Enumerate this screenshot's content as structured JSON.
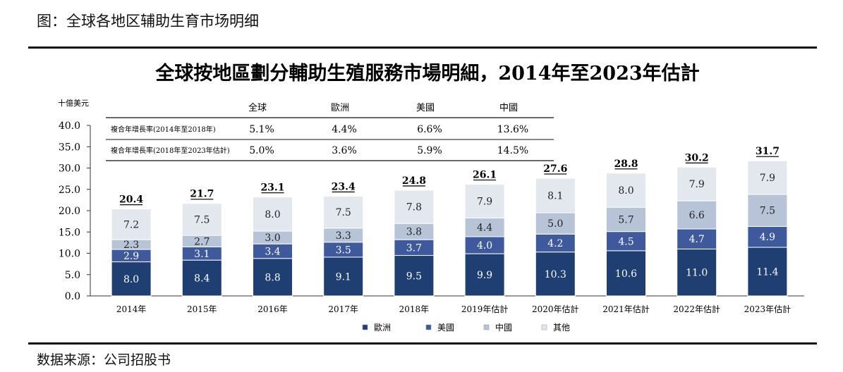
{
  "figure_caption": "图：全球各地区辅助生育市场明细",
  "source_note": "数据来源：公司招股书",
  "chart_data": {
    "type": "bar",
    "stacked": true,
    "title": "全球按地區劃分輔助生殖服務市場明細，2014年至2023年估計",
    "unit_label": "十億美元",
    "ylim": [
      0,
      40
    ],
    "yticks": [
      "0.0",
      "5.0",
      "10.0",
      "15.0",
      "20.0",
      "25.0",
      "30.0",
      "35.0",
      "40.0"
    ],
    "categories": [
      "2014年",
      "2015年",
      "2016年",
      "2017年",
      "2018年",
      "2019年估計",
      "2020年估計",
      "2021年估計",
      "2022年估計",
      "2023年估計"
    ],
    "series": [
      {
        "name": "歐洲",
        "color": "#1f3f73",
        "label_color": "#ffffff",
        "values": [
          8.0,
          8.4,
          8.8,
          9.1,
          9.5,
          9.9,
          10.3,
          10.6,
          11.0,
          11.4
        ],
        "labels": [
          "8.0",
          "8.4",
          "8.8",
          "9.1",
          "9.5",
          "9.9",
          "10.3",
          "10.6",
          "11.0",
          "11.4"
        ]
      },
      {
        "name": "美國",
        "color": "#3e5a9c",
        "label_color": "#ffffff",
        "values": [
          2.9,
          3.1,
          3.4,
          3.5,
          3.7,
          4.0,
          4.2,
          4.5,
          4.7,
          4.9
        ],
        "labels": [
          "2.9",
          "3.1",
          "3.4",
          "3.5",
          "3.7",
          "4.0",
          "4.2",
          "4.5",
          "4.7",
          "4.9"
        ]
      },
      {
        "name": "中國",
        "color": "#b7c3d6",
        "label_color": "#222222",
        "values": [
          2.3,
          2.7,
          3.0,
          3.3,
          3.8,
          4.4,
          5.0,
          5.7,
          6.6,
          7.5
        ],
        "labels": [
          "2.3",
          "2.7",
          "3.0",
          "3.3",
          "3.8",
          "4.4",
          "5.0",
          "5.7",
          "6.6",
          "7.5"
        ]
      },
      {
        "name": "其他",
        "color": "#e3e7ee",
        "label_color": "#222222",
        "values": [
          7.2,
          7.5,
          8.0,
          7.5,
          7.8,
          7.9,
          8.1,
          8.0,
          7.9,
          7.9
        ],
        "labels": [
          "7.2",
          "7.5",
          "8.0",
          "7.5",
          "7.8",
          "7.9",
          "8.1",
          "8.0",
          "7.9",
          "7.9"
        ]
      }
    ],
    "totals": [
      "20.4",
      "21.7",
      "23.1",
      "23.4",
      "24.8",
      "26.1",
      "27.6",
      "28.8",
      "30.2",
      "31.7"
    ],
    "grid": false,
    "legend_position": "bottom-center",
    "cagr_table": {
      "columns": [
        "全球",
        "歐洲",
        "美國",
        "中國"
      ],
      "rows": [
        {
          "label": "複合年增長率(2014年至2018年)",
          "values": [
            "5.1%",
            "4.4%",
            "6.6%",
            "13.6%"
          ]
        },
        {
          "label": "複合年增長率(2018年至2023年估計)",
          "values": [
            "5.0%",
            "3.6%",
            "5.9%",
            "14.5%"
          ]
        }
      ]
    }
  }
}
